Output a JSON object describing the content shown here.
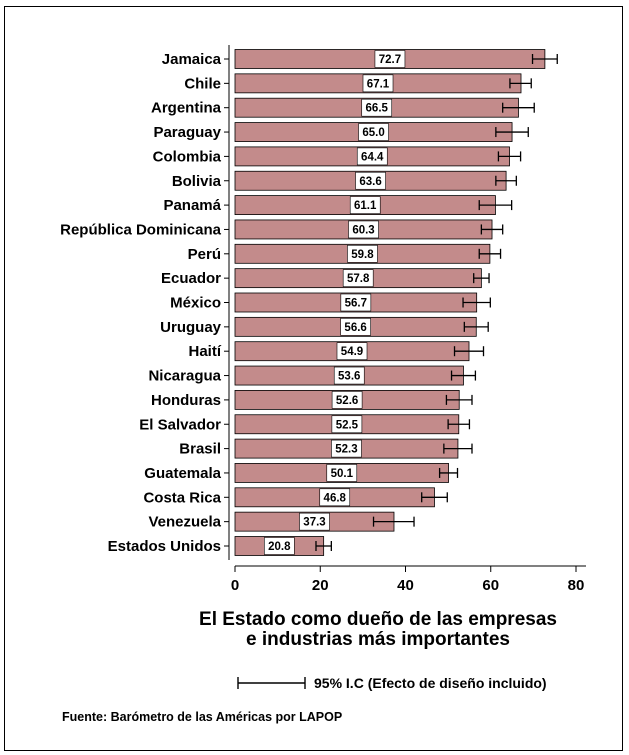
{
  "chart_data": {
    "type": "bar",
    "orientation": "horizontal",
    "categories": [
      "Jamaica",
      "Chile",
      "Argentina",
      "Paraguay",
      "Colombia",
      "Bolivia",
      "Panamá",
      "República Dominicana",
      "Perú",
      "Ecuador",
      "México",
      "Uruguay",
      "Haití",
      "Nicaragua",
      "Honduras",
      "El Salvador",
      "Brasil",
      "Guatemala",
      "Costa Rica",
      "Venezuela",
      "Estados Unidos"
    ],
    "values": [
      72.7,
      67.1,
      66.5,
      65.0,
      64.4,
      63.6,
      61.1,
      60.3,
      59.8,
      57.8,
      56.7,
      56.6,
      54.9,
      53.6,
      52.6,
      52.5,
      52.3,
      50.1,
      46.8,
      37.3,
      20.8
    ],
    "value_labels": [
      "72.7",
      "67.1",
      "66.5",
      "65.0",
      "64.4",
      "63.6",
      "61.1",
      "60.3",
      "59.8",
      "57.8",
      "56.7",
      "56.6",
      "54.9",
      "53.6",
      "52.6",
      "52.5",
      "52.3",
      "50.1",
      "46.8",
      "37.3",
      "20.8"
    ],
    "ci_low": [
      69.8,
      64.5,
      62.8,
      61.2,
      61.8,
      61.2,
      57.3,
      57.8,
      57.3,
      56.0,
      53.5,
      53.8,
      51.5,
      50.8,
      49.6,
      50.0,
      49.0,
      48.0,
      43.8,
      32.5,
      19.0
    ],
    "ci_high": [
      75.6,
      69.5,
      70.2,
      68.8,
      67.0,
      66.0,
      64.9,
      62.8,
      62.3,
      59.6,
      59.9,
      59.4,
      58.3,
      56.4,
      55.6,
      55.0,
      55.6,
      52.2,
      49.8,
      42.0,
      22.6
    ],
    "xticks": [
      "0",
      "20",
      "40",
      "60",
      "80"
    ],
    "xlim": [
      0,
      80
    ],
    "xlabel_lines": [
      "El Estado como dueño de las empresas",
      "e industrias más importantes"
    ],
    "grid": false,
    "colors": {
      "bar_fill": "#c38b8b",
      "bar_stroke": "#000000",
      "label_box": "#ffffff"
    },
    "legend": {
      "text": "95% I.C (Efecto de diseño incluido)",
      "placement": "bottom-right"
    },
    "source": "Fuente: Barómetro de las Américas por  LAPOP"
  }
}
